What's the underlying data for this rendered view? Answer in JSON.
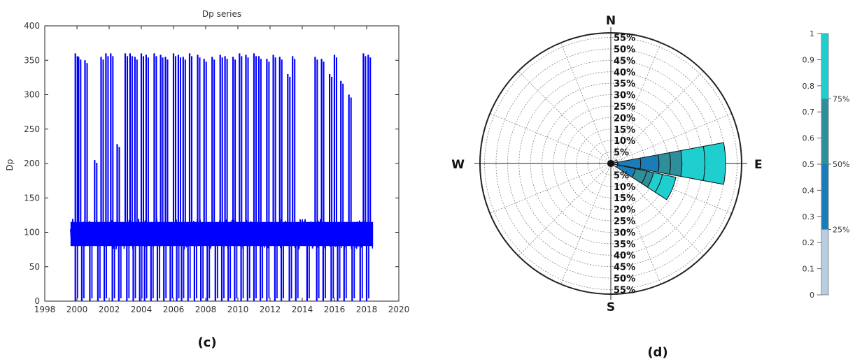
{
  "chart_data": [
    {
      "type": "line",
      "title": "Dp series",
      "xlabel": "",
      "ylabel": "Dp",
      "xlim": [
        1998,
        2020
      ],
      "ylim": [
        0,
        400
      ],
      "xticks": [
        1998,
        2000,
        2002,
        2004,
        2006,
        2008,
        2010,
        2012,
        2014,
        2016,
        2018,
        2020
      ],
      "yticks": [
        0,
        50,
        100,
        150,
        200,
        250,
        300,
        350,
        400
      ],
      "grid": false,
      "color": "#0000ff",
      "data_range_x": [
        1999.6,
        2018.4
      ],
      "baseline_band": [
        80,
        115
      ],
      "spikes_up": [
        [
          1999.9,
          360
        ],
        [
          2000.1,
          355
        ],
        [
          2000.5,
          350
        ],
        [
          2001.1,
          205
        ],
        [
          2001.5,
          355
        ],
        [
          2001.8,
          360
        ],
        [
          2002.1,
          360
        ],
        [
          2002.5,
          228
        ],
        [
          2003.0,
          360
        ],
        [
          2003.3,
          360
        ],
        [
          2003.6,
          355
        ],
        [
          2004.0,
          360
        ],
        [
          2004.3,
          358
        ],
        [
          2004.8,
          360
        ],
        [
          2005.2,
          358
        ],
        [
          2005.5,
          355
        ],
        [
          2006.0,
          360
        ],
        [
          2006.3,
          358
        ],
        [
          2006.6,
          355
        ],
        [
          2007.0,
          360
        ],
        [
          2007.5,
          358
        ],
        [
          2007.9,
          352
        ],
        [
          2008.4,
          355
        ],
        [
          2008.9,
          358
        ],
        [
          2009.2,
          356
        ],
        [
          2009.7,
          355
        ],
        [
          2010.1,
          360
        ],
        [
          2010.5,
          358
        ],
        [
          2011.0,
          360
        ],
        [
          2011.3,
          356
        ],
        [
          2011.8,
          352
        ],
        [
          2012.2,
          358
        ],
        [
          2012.6,
          355
        ],
        [
          2013.1,
          330
        ],
        [
          2013.4,
          356
        ],
        [
          2014.8,
          355
        ],
        [
          2015.2,
          352
        ],
        [
          2015.7,
          330
        ],
        [
          2016.0,
          358
        ],
        [
          2016.4,
          320
        ],
        [
          2016.9,
          300
        ],
        [
          2017.8,
          360
        ],
        [
          2018.1,
          358
        ]
      ],
      "spikes_down": [
        1999.9,
        2000.3,
        2000.8,
        2001.3,
        2001.7,
        2002.2,
        2002.6,
        2003.1,
        2003.5,
        2003.9,
        2004.2,
        2004.6,
        2005.0,
        2005.4,
        2005.8,
        2006.2,
        2006.5,
        2006.9,
        2007.3,
        2007.7,
        2008.1,
        2008.6,
        2009.0,
        2009.4,
        2009.8,
        2010.2,
        2010.6,
        2011.0,
        2011.4,
        2011.8,
        2012.3,
        2012.7,
        2013.2,
        2013.6,
        2014.3,
        2014.9,
        2015.3,
        2015.8,
        2016.2,
        2016.6,
        2017.1,
        2017.6,
        2018.0
      ]
    },
    {
      "type": "windrose",
      "directions": [
        "N",
        "E",
        "S",
        "W"
      ],
      "radial_ticks": [
        "5%",
        "10%",
        "15%",
        "20%",
        "25%",
        "30%",
        "35%",
        "40%",
        "45%",
        "50%",
        "55%"
      ],
      "rmax": 57,
      "bins": [
        {
          "direction_deg": 90,
          "segments": [
            3,
            13,
            21,
            26,
            31,
            41,
            50
          ],
          "colors": [
            "#b9cde0",
            "#1b7db7",
            "#1b7db7",
            "#2e8f9b",
            "#2e8f9b",
            "#1fcfcf",
            "#1fcfcf"
          ]
        },
        {
          "direction_deg": 112.5,
          "segments": [
            3,
            11,
            16,
            19,
            23,
            29
          ],
          "colors": [
            "#b9cde0",
            "#1b7db7",
            "#2e8f9b",
            "#2e8f9b",
            "#1fcfcf",
            "#1fcfcf"
          ]
        },
        {
          "direction_deg": 67.5,
          "segments": [
            3
          ],
          "colors": [
            "#b9cde0"
          ]
        }
      ],
      "colorbar": {
        "ticks": [
          "0",
          "0.1",
          "0.2",
          "0.3",
          "0.4",
          "0.5",
          "0.6",
          "0.7",
          "0.8",
          "0.9",
          "1"
        ],
        "segments": [
          {
            "from": 0,
            "to": 0.25,
            "color": "#b9cde0"
          },
          {
            "from": 0.25,
            "to": 0.5,
            "color": "#1b7db7"
          },
          {
            "from": 0.5,
            "to": 0.75,
            "color": "#2e8f9b"
          },
          {
            "from": 0.75,
            "to": 1.0,
            "color": "#1fcfcf"
          }
        ],
        "labels": [
          {
            "at": 0.25,
            "text": "25%"
          },
          {
            "at": 0.5,
            "text": "50%"
          },
          {
            "at": 0.75,
            "text": "75%"
          }
        ]
      }
    }
  ],
  "captions": {
    "left": "(c)",
    "right": "(d)"
  }
}
